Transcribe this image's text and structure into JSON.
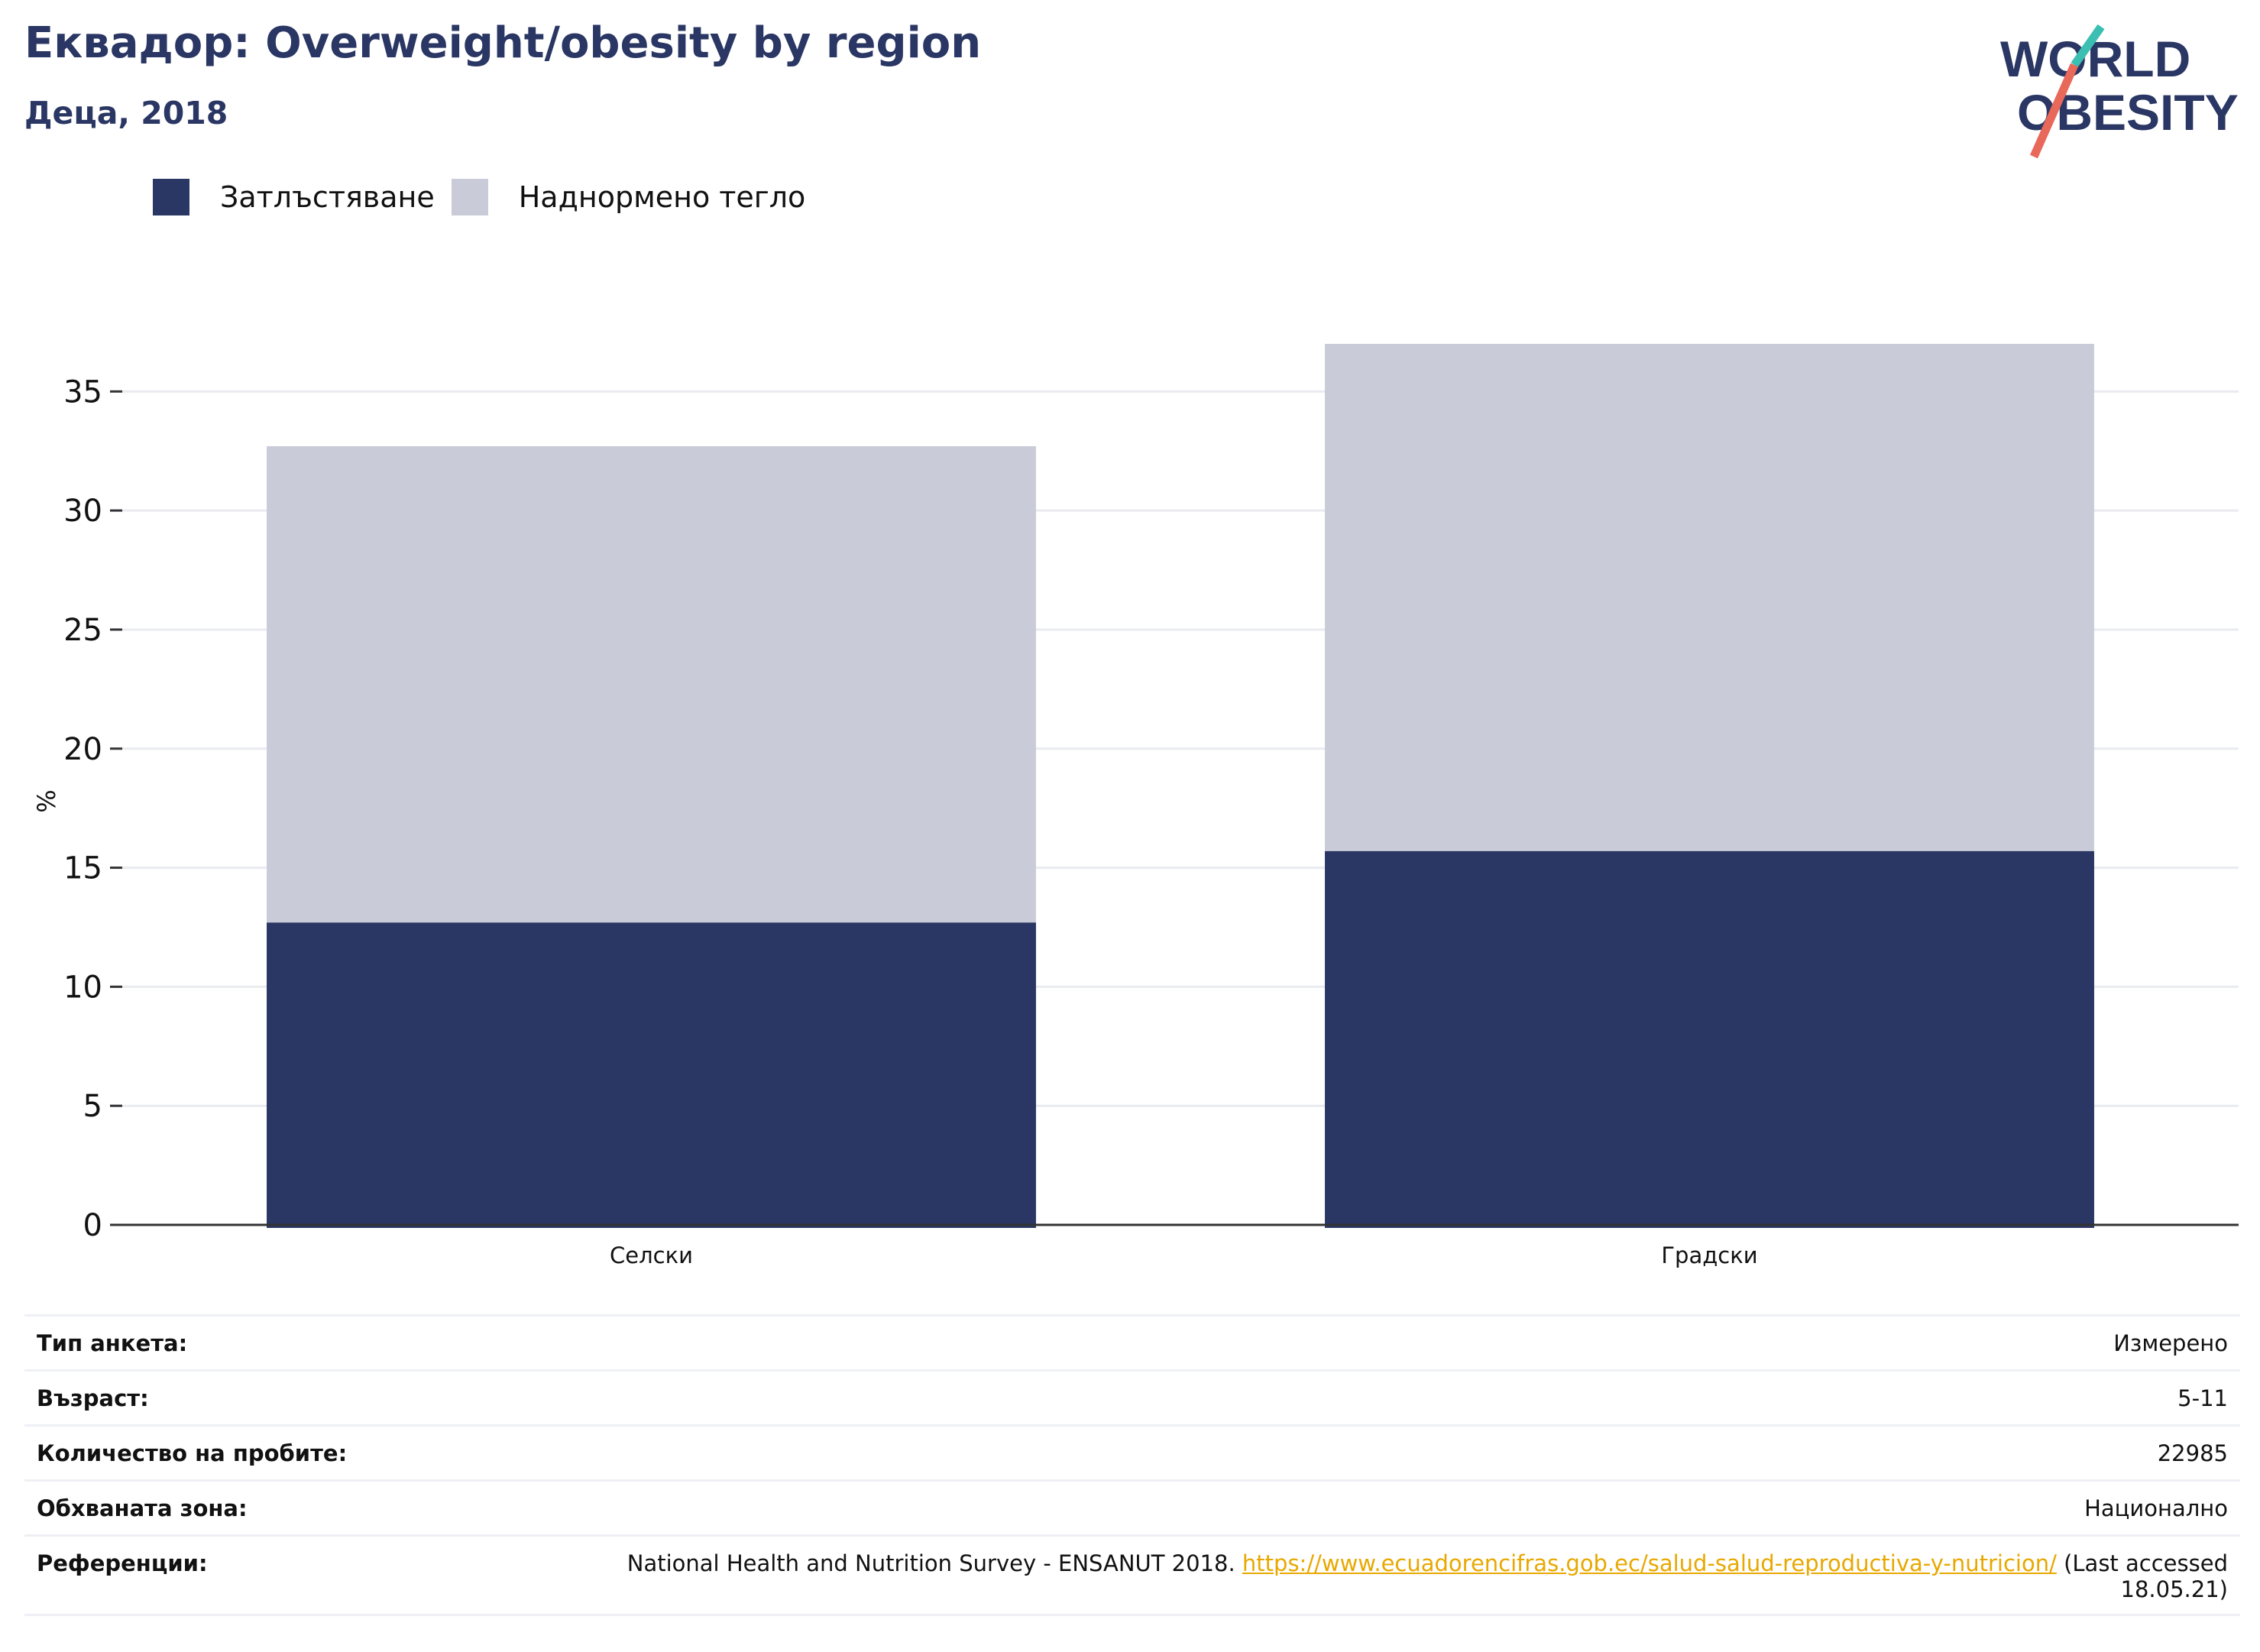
{
  "header": {
    "title": "Еквадор: Overweight/obesity by region",
    "subtitle": "Деца, 2018"
  },
  "logo": {
    "line1": "WORLD",
    "line2": "OBESITY",
    "colors": {
      "text": "#2a3663",
      "slash_top": "#3bbfb2",
      "slash_bottom": "#e8685a"
    }
  },
  "colors": {
    "obesity": "#2a3663",
    "overweight": "#c9ccd8",
    "grid": "#e9ebf0",
    "axis": "#333333",
    "link": "#e8a800"
  },
  "chart_data": {
    "type": "bar",
    "stacked": true,
    "categories": [
      "Селски",
      "Градски"
    ],
    "series": [
      {
        "name": "Затлъстяване",
        "color": "#2a3663",
        "values": [
          12.7,
          15.7
        ]
      },
      {
        "name": "Наднормено тегло",
        "color": "#c9ccd8",
        "values": [
          20.0,
          21.3
        ]
      }
    ],
    "ylabel": "%",
    "ylim": [
      0,
      37
    ],
    "yticks": [
      0,
      5,
      10,
      15,
      20,
      25,
      30,
      35
    ],
    "grid": true,
    "legend_position": "top-left"
  },
  "info": {
    "rows": [
      {
        "label": "Тип анкета:",
        "value": "Измерено"
      },
      {
        "label": "Възраст:",
        "value": "5-11"
      },
      {
        "label": "Количество на пробите:",
        "value": "22985"
      },
      {
        "label": "Обхваната зона:",
        "value": "Национално"
      }
    ],
    "reference": {
      "label": "Референции:",
      "text_before": "National Health and Nutrition Survey - ENSANUT 2018.",
      "link": "https://www.ecuadorencifras.gob.ec/salud-salud-reproductiva-y-nutricion/",
      "text_after": "(Last accessed 18.05.21)"
    }
  }
}
